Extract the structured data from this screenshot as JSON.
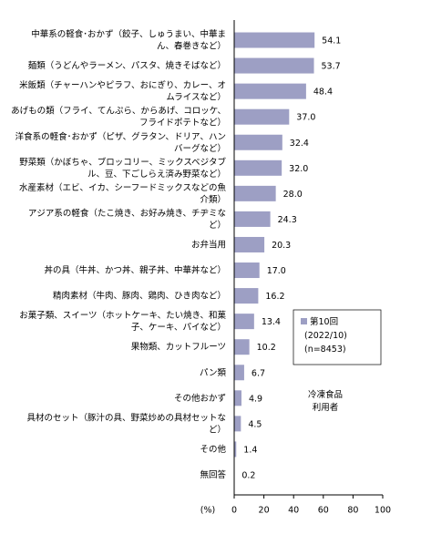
{
  "chart_data": {
    "type": "bar",
    "orientation": "horizontal",
    "categories": [
      "中華系の軽食･おかず（餃子、しゅうまい、中華ま\nん、春巻きなど）",
      "麺類（うどんやラーメン、パスタ、焼きそばなど）",
      "米飯類（チャーハンやピラフ、おにぎり、カレー、オ\nムライスなど）",
      "あげもの類（フライ、てんぷら、からあげ、コロッケ、\nフライドポテトなど）",
      "洋食系の軽食･おかず（ピザ、グラタン、ドリア、ハン\nバーグなど）",
      "野菜類（かぼちゃ、ブロッコリー、ミックスベジタブ\nル、豆、下ごしらえ済み野菜など）",
      "水産素材（エビ、イカ、シーフードミックスなどの魚\n介類）",
      "アジア系の軽食（たこ焼き、お好み焼き、チヂミな\nど）",
      "お弁当用",
      "丼の具（牛丼、かつ丼、親子丼、中華丼など）",
      "精肉素材（牛肉、豚肉、鶏肉、ひき肉など）",
      "お菓子類、スイーツ（ホットケーキ、たい焼き、和菓\n子、ケーキ、パイなど）",
      "果物類、カットフルーツ",
      "パン類",
      "その他おかず",
      "具材のセット（豚汁の具、野菜炒めの具材セットな\nど）",
      "その他",
      "無回答"
    ],
    "series": [
      {
        "name": "第10回\n(2022/10)\n(n=8453)",
        "color": "#9d9fc4",
        "values": [
          54.1,
          53.7,
          48.4,
          37.0,
          32.4,
          32.0,
          28.0,
          24.3,
          20.3,
          17.0,
          16.2,
          13.4,
          10.2,
          6.7,
          4.9,
          4.5,
          1.4,
          0.2
        ],
        "value_labels": [
          "54.1",
          "53.7",
          "48.4",
          "37.0",
          "32.4",
          "32.0",
          "28.0",
          "24.3",
          "20.3",
          "17.0",
          "16.2",
          "13.4",
          "10.2",
          "6.7",
          "4.9",
          "4.5",
          "1.4",
          "0.2"
        ]
      }
    ],
    "xlim": [
      0,
      100
    ],
    "xticks": [
      0,
      20,
      40,
      60,
      80,
      100
    ],
    "x_axis_label": "(%)",
    "annotation": "冷凍食品\n利用者"
  }
}
